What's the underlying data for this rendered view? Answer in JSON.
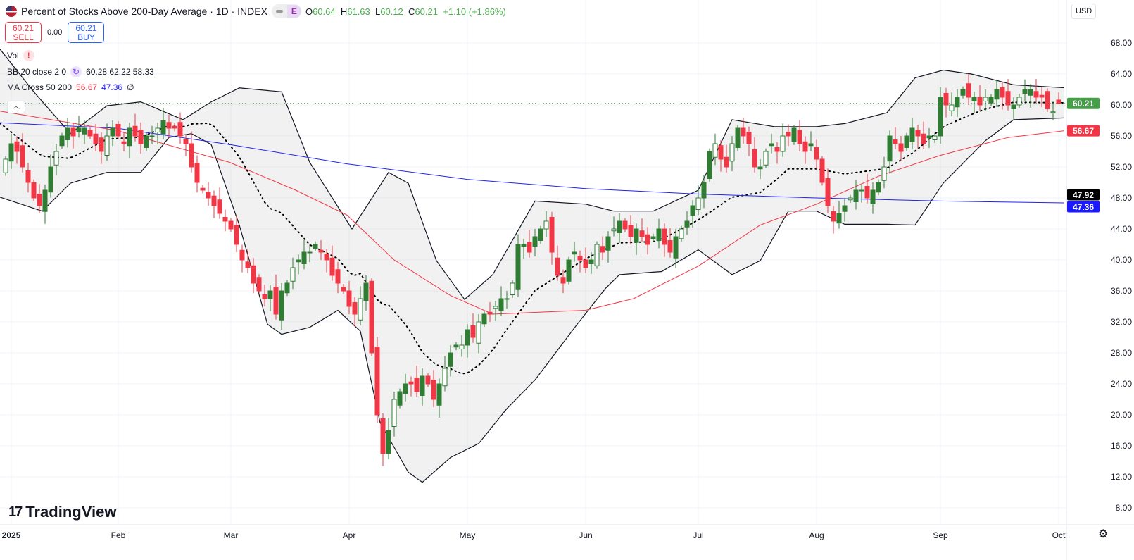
{
  "header": {
    "title": "Percent of Stocks Above 200-Day Average · 1D · INDEX",
    "badge": "E",
    "ohlc": {
      "o_label": "O",
      "o": "60.64",
      "h_label": "H",
      "h": "61.63",
      "l_label": "L",
      "l": "60.12",
      "c_label": "C",
      "c": "60.21",
      "change": "+1.10 (+1.86%)"
    }
  },
  "trade": {
    "sell_price": "60.21",
    "sell_label": "SELL",
    "spread": "0.00",
    "buy_price": "60.21",
    "buy_label": "BUY"
  },
  "indicators": {
    "vol": {
      "label": "Vol",
      "warn": "!"
    },
    "bb": {
      "label": "BB 20 close 2 0",
      "values": "60.28 62.22 58.33"
    },
    "ma": {
      "label": "MA Cross 50 200",
      "v1": "56.67",
      "v2": "47.36",
      "extra": "∅"
    }
  },
  "currency": "USD",
  "logo": "TradingView",
  "colors": {
    "up": "#089981",
    "green_candle": "#2e7d32",
    "down": "#f23645",
    "ma50": "#f23645",
    "ma200": "#2222ee",
    "bb": "#131722",
    "grid": "#f0f3fa"
  },
  "chart_data": {
    "type": "candlestick",
    "ylim": [
      6,
      70
    ],
    "yticks": [
      "68.00",
      "64.00",
      "60.00",
      "56.00",
      "52.00",
      "48.00",
      "44.00",
      "40.00",
      "36.00",
      "32.00",
      "28.00",
      "24.00",
      "20.00",
      "16.00",
      "12.00",
      "8.00"
    ],
    "xticks": [
      {
        "label": "2025",
        "day": 1
      },
      {
        "label": "Feb",
        "day": 20
      },
      {
        "label": "Mar",
        "day": 40
      },
      {
        "label": "Apr",
        "day": 61
      },
      {
        "label": "May",
        "day": 82
      },
      {
        "label": "Jun",
        "day": 103
      },
      {
        "label": "Jul",
        "day": 123
      },
      {
        "label": "Aug",
        "day": 144
      },
      {
        "label": "Sep",
        "day": 166
      },
      {
        "label": "Oct",
        "day": 187
      }
    ],
    "closes": [
      53,
      55,
      54,
      52,
      50,
      48,
      47,
      49,
      52,
      54,
      56,
      57,
      56,
      57,
      57,
      56,
      55,
      54,
      56,
      57,
      56,
      55,
      57,
      56,
      55,
      56,
      56,
      57,
      58,
      57,
      57,
      56,
      55,
      52,
      50,
      49,
      48,
      47,
      46,
      45,
      44,
      42,
      40,
      39,
      37,
      36,
      35,
      36,
      33,
      36,
      37,
      39,
      40,
      41,
      41,
      42,
      41,
      40,
      38,
      37,
      36,
      34,
      33,
      35,
      37,
      28,
      20,
      15,
      18,
      22,
      23,
      24,
      24,
      23,
      25,
      24,
      22,
      24,
      26,
      28,
      29,
      29,
      31,
      30,
      32,
      33,
      33,
      34,
      35,
      35,
      37,
      42,
      42,
      41,
      43,
      44,
      45,
      41,
      38,
      37,
      40,
      41,
      40,
      39,
      40,
      42,
      41,
      43,
      44,
      45,
      44,
      43,
      44,
      43,
      42,
      43,
      44,
      42,
      41,
      43,
      44,
      45,
      47,
      48,
      50,
      54,
      55,
      53,
      52,
      55,
      57,
      56,
      55,
      52,
      52,
      54,
      55,
      54,
      56,
      56,
      57,
      55,
      54,
      55,
      53,
      50,
      47,
      45,
      46,
      47,
      48,
      49,
      49,
      48,
      49,
      50,
      52,
      56,
      55,
      54,
      56,
      57,
      56,
      55,
      56,
      56,
      61,
      60,
      60,
      61,
      62,
      61,
      61,
      60,
      61,
      61,
      62,
      61,
      60,
      60,
      61,
      62,
      62,
      61,
      61,
      59.5,
      59.11,
      60.21
    ],
    "last_candle": {
      "open": 60.64,
      "high": 61.63,
      "low": 60.12,
      "close": 60.21
    },
    "bb_upper": [
      [
        -1,
        67.2
      ],
      [
        5,
        61.7
      ],
      [
        11.5,
        56.3
      ],
      [
        18,
        59.9
      ],
      [
        24,
        60.4
      ],
      [
        31.5,
        58.1
      ],
      [
        36.5,
        60.4
      ],
      [
        41.5,
        62.2
      ],
      [
        49,
        61.7
      ],
      [
        54,
        52.6
      ],
      [
        61.5,
        44
      ],
      [
        68,
        51.3
      ],
      [
        71.5,
        49.9
      ],
      [
        76.5,
        39.9
      ],
      [
        81.5,
        34.9
      ],
      [
        86.5,
        38.1
      ],
      [
        94,
        47.6
      ],
      [
        103,
        47.2
      ],
      [
        108,
        46.3
      ],
      [
        115,
        46.3
      ],
      [
        123,
        49
      ],
      [
        129,
        58.1
      ],
      [
        136.5,
        57.2
      ],
      [
        144,
        57.2
      ],
      [
        149,
        57.6
      ],
      [
        156.5,
        59
      ],
      [
        161.5,
        63.5
      ],
      [
        166.5,
        64.5
      ],
      [
        171.5,
        64
      ],
      [
        179,
        62.6
      ],
      [
        188,
        62.22
      ]
    ],
    "bb_lower": [
      [
        -1,
        48.1
      ],
      [
        6.5,
        46.3
      ],
      [
        11.5,
        49.9
      ],
      [
        18,
        51.3
      ],
      [
        24,
        51.3
      ],
      [
        29,
        55.8
      ],
      [
        33,
        56.3
      ],
      [
        36.5,
        54.9
      ],
      [
        41.5,
        44.5
      ],
      [
        46.5,
        31.7
      ],
      [
        49,
        30.4
      ],
      [
        54,
        31.3
      ],
      [
        59,
        33.5
      ],
      [
        63,
        30.8
      ],
      [
        66.5,
        19
      ],
      [
        71.5,
        12.6
      ],
      [
        74,
        11.3
      ],
      [
        79,
        14.5
      ],
      [
        84,
        16.3
      ],
      [
        89,
        20.8
      ],
      [
        94,
        24.5
      ],
      [
        101.5,
        31.7
      ],
      [
        106.5,
        36.3
      ],
      [
        109,
        38.1
      ],
      [
        116.5,
        38.5
      ],
      [
        123,
        41.3
      ],
      [
        129,
        38.1
      ],
      [
        134,
        39.9
      ],
      [
        139,
        46.3
      ],
      [
        144,
        46.3
      ],
      [
        149,
        44.6
      ],
      [
        156.5,
        44.6
      ],
      [
        161.5,
        44.5
      ],
      [
        166.5,
        49.9
      ],
      [
        174,
        55.4
      ],
      [
        179,
        58.1
      ],
      [
        188,
        58.33
      ]
    ],
    "ma50": [
      [
        -1,
        59.2
      ],
      [
        19.75,
        56.7
      ],
      [
        39.75,
        52.6
      ],
      [
        51.5,
        49
      ],
      [
        60.6,
        45.8
      ],
      [
        69,
        40
      ],
      [
        79,
        35.4
      ],
      [
        86.5,
        33
      ],
      [
        103,
        33.5
      ],
      [
        111.5,
        35
      ],
      [
        123,
        39.2
      ],
      [
        134,
        44.5
      ],
      [
        144,
        47.2
      ],
      [
        155,
        50.8
      ],
      [
        166,
        53.5
      ],
      [
        178,
        55.8
      ],
      [
        188,
        56.67
      ]
    ],
    "ma200": [
      [
        -1,
        57.7
      ],
      [
        19.75,
        57
      ],
      [
        39.75,
        54.9
      ],
      [
        60.6,
        52.4
      ],
      [
        82,
        50.4
      ],
      [
        103,
        49.2
      ],
      [
        123,
        48.5
      ],
      [
        144,
        48
      ],
      [
        166,
        47.6
      ],
      [
        188,
        47.36
      ]
    ],
    "price_labels": [
      {
        "value": "60.21",
        "y": 60.21,
        "color": "#43a047"
      },
      {
        "value": "56.67",
        "y": 56.67,
        "color": "#f23645"
      },
      {
        "value": "47.92",
        "y": 47.92,
        "color": "#000000"
      },
      {
        "value": "47.36",
        "y": 47.36,
        "color": "#1a1aff"
      }
    ]
  }
}
